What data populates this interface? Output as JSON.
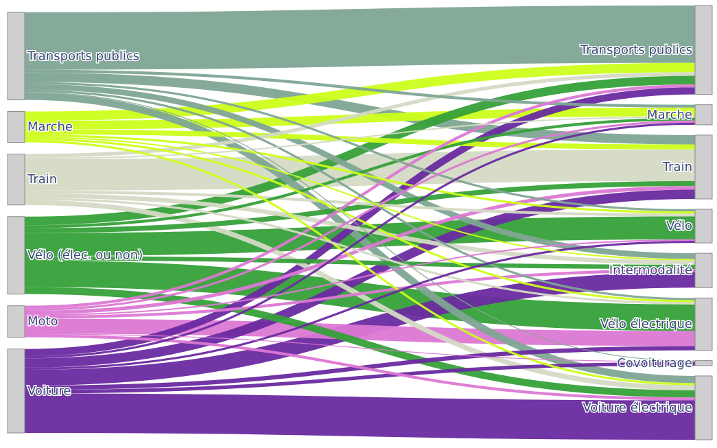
{
  "chart_data": {
    "type": "sankey",
    "colors": {
      "Transports publics": "#7fa593",
      "Marche": "#ccff1a",
      "Train": "#d4dac4",
      "Vélo (élec. ou non)": "#36a039",
      "Moto": "#dc78d4",
      "Voiture": "#6a2aa0",
      "node_fill": "#cfcfcf",
      "node_stroke": "#8a8a8a",
      "label": "#3b4a77"
    },
    "sources": [
      "Transports publics",
      "Marche",
      "Train",
      "Vélo (élec. ou non)",
      "Moto",
      "Voiture"
    ],
    "targets": [
      "Transports publics",
      "Marche",
      "Train",
      "Vélo",
      "Intermodalité",
      "Vélo électrique",
      "Covoiturage",
      "Voiture électrique"
    ],
    "links": [
      {
        "source": "Transports publics",
        "target": "Transports publics",
        "value": 80
      },
      {
        "source": "Transports publics",
        "target": "Marche",
        "value": 4
      },
      {
        "source": "Transports publics",
        "target": "Train",
        "value": 13
      },
      {
        "source": "Transports publics",
        "target": "Vélo",
        "value": 3
      },
      {
        "source": "Transports publics",
        "target": "Intermodalité",
        "value": 8
      },
      {
        "source": "Transports publics",
        "target": "Vélo électrique",
        "value": 3
      },
      {
        "source": "Transports publics",
        "target": "Covoiturage",
        "value": 1
      },
      {
        "source": "Transports publics",
        "target": "Voiture électrique",
        "value": 10
      },
      {
        "source": "Marche",
        "target": "Transports publics",
        "value": 13
      },
      {
        "source": "Marche",
        "target": "Marche",
        "value": 12
      },
      {
        "source": "Marche",
        "target": "Train",
        "value": 7
      },
      {
        "source": "Marche",
        "target": "Vélo",
        "value": 3
      },
      {
        "source": "Marche",
        "target": "Intermodalité",
        "value": 2
      },
      {
        "source": "Marche",
        "target": "Vélo électrique",
        "value": 3
      },
      {
        "source": "Marche",
        "target": "Voiture électrique",
        "value": 3
      },
      {
        "source": "Train",
        "target": "Transports publics",
        "value": 5
      },
      {
        "source": "Train",
        "target": "Marche",
        "value": 2
      },
      {
        "source": "Train",
        "target": "Train",
        "value": 44
      },
      {
        "source": "Train",
        "target": "Vélo",
        "value": 4
      },
      {
        "source": "Train",
        "target": "Intermodalité",
        "value": 6
      },
      {
        "source": "Train",
        "target": "Vélo électrique",
        "value": 3
      },
      {
        "source": "Train",
        "target": "Voiture électrique",
        "value": 7
      },
      {
        "source": "Vélo (élec. ou non)",
        "target": "Transports publics",
        "value": 12
      },
      {
        "source": "Vélo (élec. ou non)",
        "target": "Marche",
        "value": 4
      },
      {
        "source": "Vélo (élec. ou non)",
        "target": "Train",
        "value": 7
      },
      {
        "source": "Vélo (élec. ou non)",
        "target": "Vélo",
        "value": 32
      },
      {
        "source": "Vélo (élec. ou non)",
        "target": "Intermodalité",
        "value": 6
      },
      {
        "source": "Vélo (élec. ou non)",
        "target": "Vélo électrique",
        "value": 37
      },
      {
        "source": "Vélo (élec. ou non)",
        "target": "Voiture électrique",
        "value": 10
      },
      {
        "source": "Moto",
        "target": "Transports publics",
        "value": 4
      },
      {
        "source": "Moto",
        "target": "Marche",
        "value": 3
      },
      {
        "source": "Moto",
        "target": "Train",
        "value": 5
      },
      {
        "source": "Moto",
        "target": "Vélo",
        "value": 2
      },
      {
        "source": "Moto",
        "target": "Intermodalité",
        "value": 4
      },
      {
        "source": "Moto",
        "target": "Vélo électrique",
        "value": 21
      },
      {
        "source": "Moto",
        "target": "Covoiturage",
        "value": 1
      },
      {
        "source": "Moto",
        "target": "Voiture électrique",
        "value": 4
      },
      {
        "source": "Voiture",
        "target": "Transports publics",
        "value": 10
      },
      {
        "source": "Voiture",
        "target": "Marche",
        "value": 3
      },
      {
        "source": "Voiture",
        "target": "Train",
        "value": 13
      },
      {
        "source": "Voiture",
        "target": "Vélo",
        "value": 3
      },
      {
        "source": "Voiture",
        "target": "Intermodalité",
        "value": 22
      },
      {
        "source": "Voiture",
        "target": "Vélo électrique",
        "value": 6
      },
      {
        "source": "Voiture",
        "target": "Covoiturage",
        "value": 5
      },
      {
        "source": "Voiture",
        "target": "Voiture électrique",
        "value": 55
      }
    ]
  }
}
